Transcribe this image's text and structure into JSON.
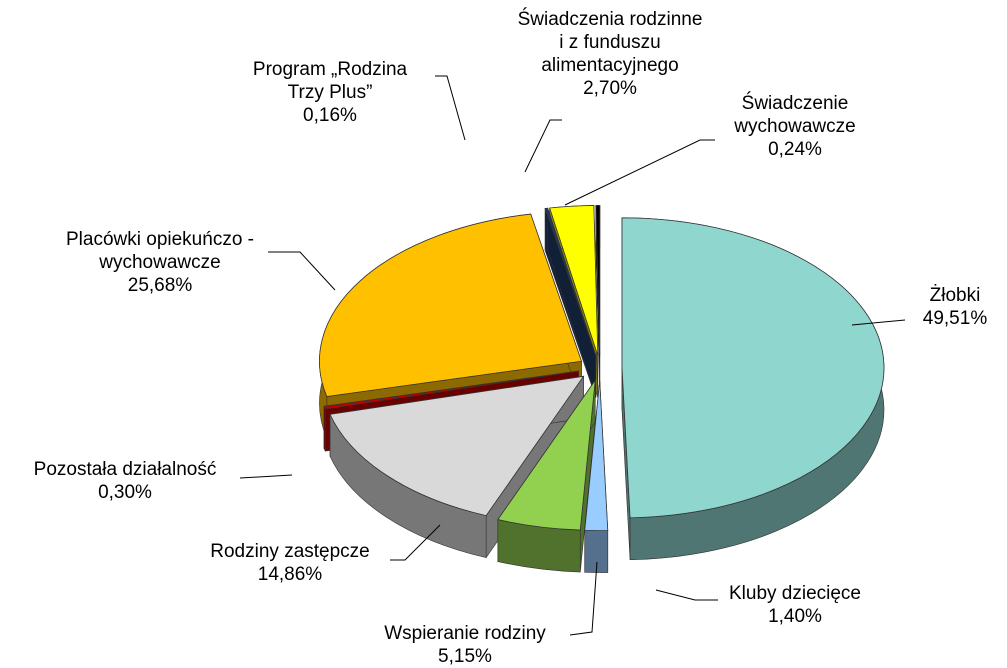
{
  "chart_data": {
    "type": "pie3d",
    "categories": [
      "Żłobki",
      "Kluby dziecięce",
      "Wspieranie rodziny",
      "Rodziny zastępcze",
      "Pozostała działalność",
      "Placówki opiekuńczo -\nwychowawcze",
      "Program „Rodzina\nTrzy Plus”",
      "Świadczenia rodzinne\ni z funduszu\nalimentacyjnego",
      "Świadczenie\nwychowawcze"
    ],
    "values": [
      49.51,
      1.4,
      5.15,
      14.86,
      0.3,
      25.68,
      0.16,
      2.7,
      0.24
    ],
    "value_labels": [
      "49,51%",
      "1,40%",
      "5,15%",
      "14,86%",
      "0,30%",
      "25,68%",
      "0,16%",
      "2,70%",
      "0,24%"
    ],
    "colors": [
      "#8fd6cf",
      "#99ccff",
      "#92d050",
      "#d9d9d9",
      "#c00000",
      "#ffc000",
      "#1f3864",
      "#ffff00",
      "#000000"
    ]
  }
}
